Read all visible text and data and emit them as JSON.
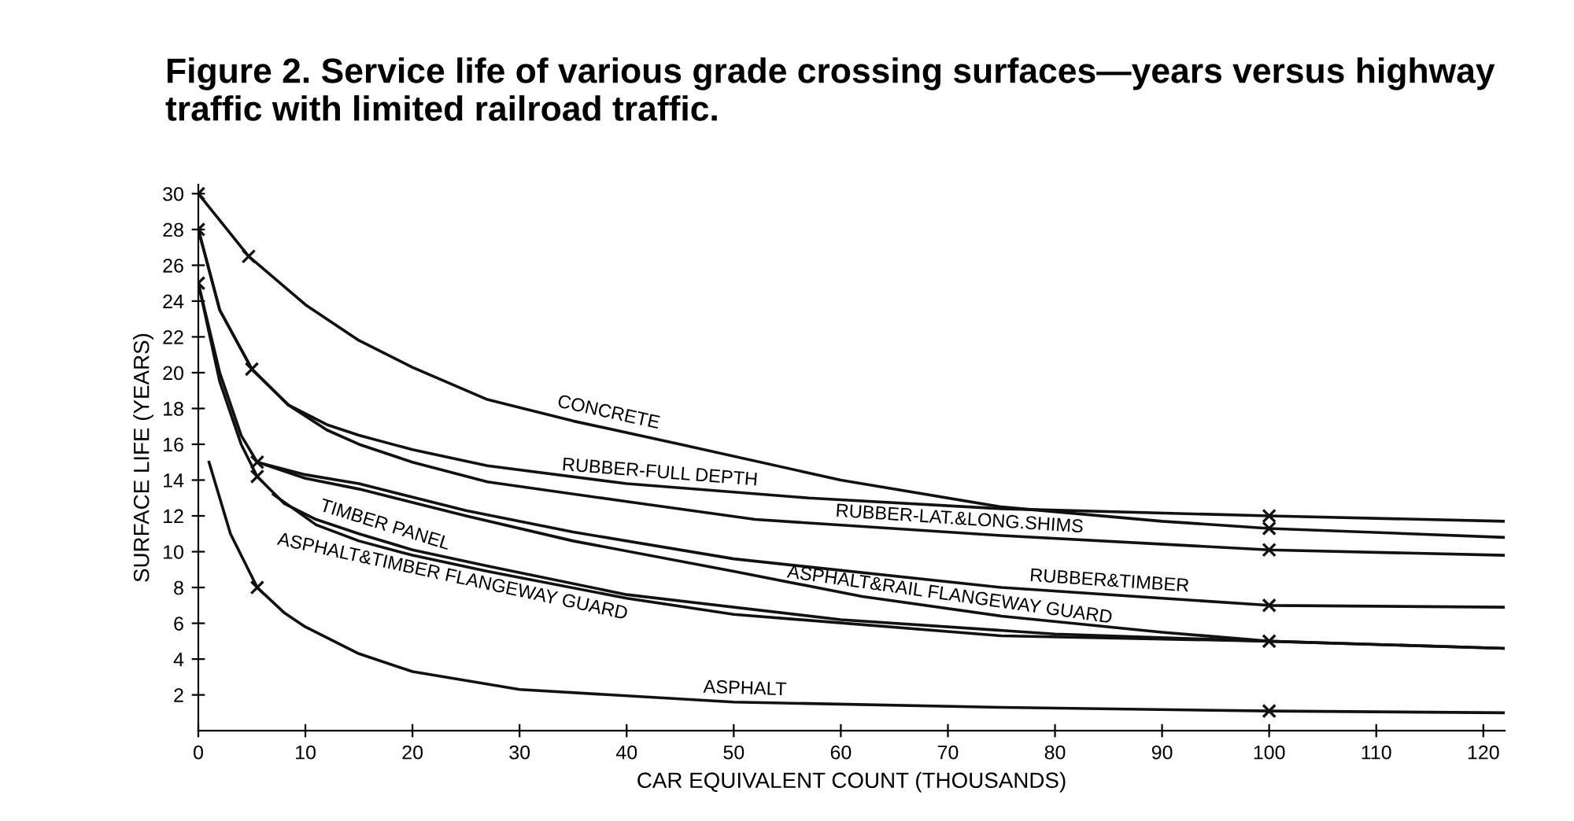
{
  "chart_data": {
    "type": "line",
    "title": "Figure 2. Service life of various grade crossing surfaces—years versus highway traffic with limited railroad traffic.",
    "xlabel": "CAR EQUIVALENT COUNT (THOUSANDS)",
    "ylabel": "SURFACE LIFE (YEARS)",
    "xlim": [
      0,
      122
    ],
    "ylim": [
      0,
      30.5
    ],
    "xticks": [
      0,
      10,
      20,
      30,
      40,
      50,
      60,
      70,
      80,
      90,
      100,
      110,
      120
    ],
    "yticks": [
      2,
      4,
      6,
      8,
      10,
      12,
      14,
      16,
      18,
      20,
      22,
      24,
      26,
      28,
      30
    ],
    "grid": false,
    "legend": false,
    "marker": "none",
    "line_style": "solid",
    "series": [
      {
        "name": "CONCRETE",
        "color": "#111111",
        "x": [
          0,
          4.7,
          10,
          15,
          20,
          27,
          35,
          45,
          60,
          75,
          90,
          100,
          122
        ],
        "values": [
          30,
          26.5,
          23.8,
          21.8,
          20.3,
          18.5,
          17.3,
          16,
          14,
          12.5,
          11.7,
          11.3,
          10.8
        ]
      },
      {
        "name": "RUBBER-FULL DEPTH",
        "color": "#111111",
        "x": [
          0,
          2,
          5,
          8.4,
          12,
          15,
          20,
          27,
          40,
          57,
          75,
          100,
          122
        ],
        "values": [
          28,
          23.5,
          20.2,
          18.2,
          17.1,
          16.5,
          15.7,
          14.8,
          13.8,
          13,
          12.4,
          12,
          11.7
        ]
      },
      {
        "name": "RUBBER-LAT.&LONG.SHIMS",
        "color": "#111111",
        "x": [
          0,
          2,
          5,
          8.4,
          12,
          15,
          20,
          27,
          40,
          52,
          75,
          100,
          122
        ],
        "values": [
          28,
          23.5,
          20.2,
          18.2,
          16.8,
          16,
          15,
          13.9,
          12.8,
          11.8,
          10.9,
          10.1,
          9.8
        ]
      },
      {
        "name": "RUBBER&TIMBER",
        "color": "#111111",
        "x": [
          0,
          2,
          4,
          5.5,
          10,
          15,
          25,
          35,
          50,
          75,
          100,
          122
        ],
        "values": [
          25,
          20,
          16.5,
          15,
          14.3,
          13.8,
          12.3,
          11.1,
          9.6,
          8,
          7,
          6.9
        ]
      },
      {
        "name": "ASPHALT&RAIL FLANGEWAY GUARD",
        "color": "#111111",
        "x": [
          5.5,
          10,
          15,
          25,
          35,
          50,
          62,
          75,
          90,
          100,
          122
        ],
        "values": [
          15,
          14.1,
          13.5,
          12,
          10.6,
          8.9,
          7.5,
          6.4,
          5.5,
          5,
          4.6
        ]
      },
      {
        "name": "TIMBER PANEL",
        "color": "#111111",
        "x": [
          0,
          2,
          4,
          5.5,
          8,
          11,
          15,
          20,
          27,
          40,
          60,
          80,
          100,
          122
        ],
        "values": [
          25,
          19.5,
          16,
          14.2,
          12.7,
          11.8,
          11,
          10.1,
          9.2,
          7.6,
          6.2,
          5.4,
          5,
          4.6
        ]
      },
      {
        "name": "ASPHALT&TIMBER FLANGEWAY GUARD",
        "color": "#111111",
        "x": [
          7,
          11,
          15,
          20,
          27,
          40,
          50,
          75,
          100
        ],
        "values": [
          13.2,
          11.5,
          10.6,
          9.8,
          8.9,
          7.4,
          6.5,
          5.3,
          5
        ]
      },
      {
        "name": "ASPHALT",
        "color": "#111111",
        "x": [
          1,
          3,
          5.5,
          8,
          10,
          15,
          20,
          30,
          50,
          75,
          100,
          122
        ],
        "values": [
          15,
          11,
          8,
          6.6,
          5.8,
          4.3,
          3.3,
          2.3,
          1.6,
          1.3,
          1.1,
          1
        ]
      },
      {
        "type": "scatter",
        "marker": "cross",
        "color": "#111111",
        "x": [
          0,
          0,
          0,
          4.7,
          5,
          5.5,
          5.5,
          5.5,
          100,
          100,
          100,
          100,
          100,
          100
        ],
        "values": [
          30,
          28,
          25,
          26.5,
          20.2,
          15,
          14.2,
          8,
          12,
          11.3,
          10.1,
          7,
          5,
          1.1
        ]
      }
    ]
  }
}
